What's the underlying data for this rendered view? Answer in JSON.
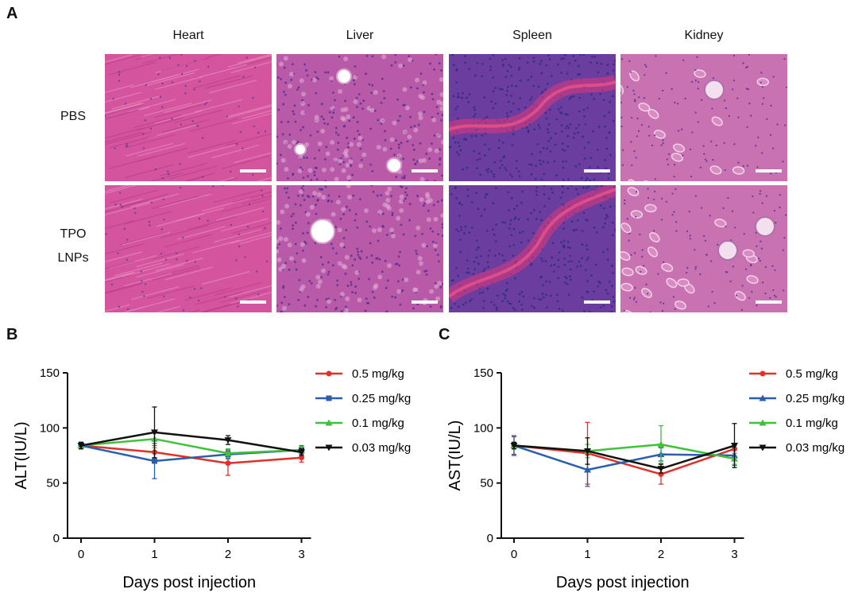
{
  "panels": {
    "A": {
      "label": "A",
      "columns": [
        "Heart",
        "Liver",
        "Spleen",
        "Kidney"
      ],
      "rows": [
        {
          "lines": [
            "PBS"
          ]
        },
        {
          "lines": [
            "TPO",
            "LNPs"
          ]
        }
      ]
    },
    "B": {
      "label": "B"
    },
    "C": {
      "label": "C"
    }
  },
  "colors": {
    "heart": "#d4559e",
    "liver": "#b85aa8",
    "spleen": "#6a3d9f",
    "kidney": "#c872b2",
    "red": "#e0302a",
    "blue": "#2a5fad",
    "green": "#3fc23a",
    "black": "#111111"
  },
  "chart_data": [
    {
      "type": "line",
      "x": [
        0,
        1,
        2,
        3
      ],
      "xlabel": "Days post injection",
      "ylabel": "ALT(IU/L)",
      "ylim": [
        0,
        150
      ],
      "yticks": [
        0,
        50,
        100,
        150
      ],
      "legend": "top-right",
      "series": [
        {
          "name": "0.5 mg/kg",
          "color": "#e0302a",
          "marker": "circle",
          "values": [
            84,
            78,
            68,
            73
          ],
          "err": [
            3,
            6,
            11,
            4
          ]
        },
        {
          "name": "0.25 mg/kg",
          "color": "#2a5fad",
          "marker": "square",
          "values": [
            84,
            70,
            76,
            80
          ],
          "err": [
            3,
            16,
            4,
            4
          ]
        },
        {
          "name": "0.1 mg/kg",
          "color": "#3fc23a",
          "marker": "triangle",
          "values": [
            84,
            90,
            77,
            80
          ],
          "err": [
            3,
            8,
            4,
            3
          ]
        },
        {
          "name": "0.03 mg/kg",
          "color": "#111111",
          "marker": "triangle-down",
          "values": [
            84,
            96,
            89,
            78
          ],
          "err": [
            3,
            23,
            4,
            3
          ]
        }
      ]
    },
    {
      "type": "line",
      "x": [
        0,
        1,
        2,
        3
      ],
      "xlabel": "Days post injection",
      "ylabel": "AST(IU/L)",
      "ylim": [
        0,
        150
      ],
      "yticks": [
        0,
        50,
        100,
        150
      ],
      "legend": "top-right",
      "series": [
        {
          "name": "0.5 mg/kg",
          "color": "#e0302a",
          "marker": "circle",
          "values": [
            84,
            77,
            58,
            81
          ],
          "err": [
            9,
            28,
            9,
            4
          ]
        },
        {
          "name": "0.25 mg/kg",
          "color": "#2a5fad",
          "marker": "triangle",
          "values": [
            84,
            62,
            76,
            75
          ],
          "err": [
            8,
            15,
            6,
            9
          ]
        },
        {
          "name": "0.1 mg/kg",
          "color": "#3fc23a",
          "marker": "triangle",
          "values": [
            84,
            79,
            85,
            72
          ],
          "err": [
            3,
            6,
            17,
            5
          ]
        },
        {
          "name": "0.03 mg/kg",
          "color": "#111111",
          "marker": "triangle-down",
          "values": [
            84,
            79,
            63,
            84
          ],
          "err": [
            3,
            12,
            4,
            20
          ]
        }
      ]
    }
  ]
}
